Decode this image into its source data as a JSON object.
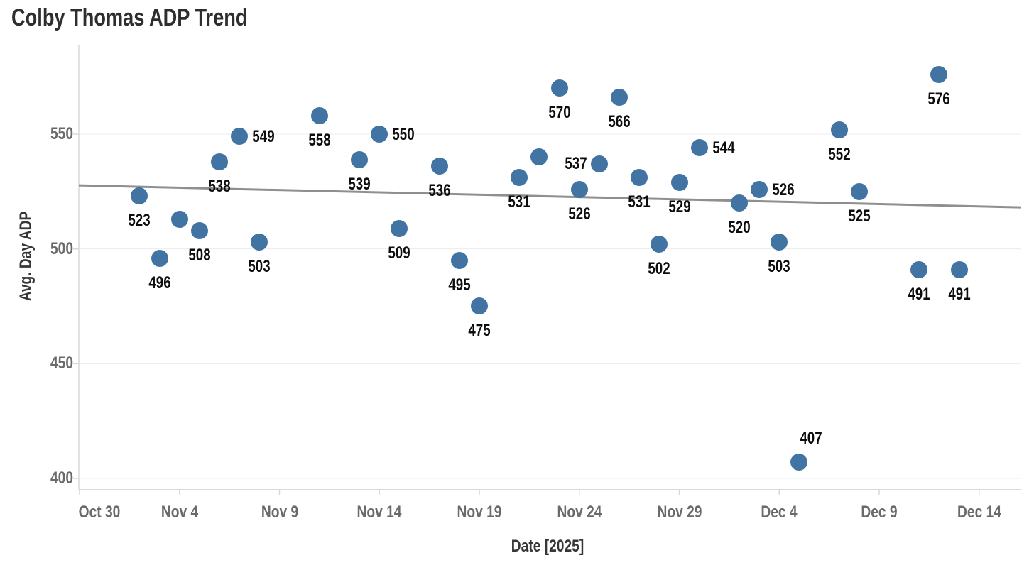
{
  "chart": {
    "title": "Colby Thomas ADP Trend",
    "xlabel": "Date [2025]",
    "ylabel": "Avg. Day ADP"
  },
  "chart_data": {
    "type": "scatter",
    "title": "Colby Thomas ADP Trend",
    "xlabel": "Date [2025]",
    "ylabel": "Avg. Day ADP",
    "legend": "none",
    "grid": "horizontal-only",
    "point_color": "#4173a3",
    "trend_color": "#8f8f8f",
    "grid_color": "#ececec",
    "axis_color": "#d9d9d9",
    "tick_label_color": "#6a6a6a",
    "x_ticks": [
      {
        "label": "Oct 30",
        "day": 0
      },
      {
        "label": "Nov 4",
        "day": 5
      },
      {
        "label": "Nov 9",
        "day": 10
      },
      {
        "label": "Nov 14",
        "day": 15
      },
      {
        "label": "Nov 19",
        "day": 20
      },
      {
        "label": "Nov 24",
        "day": 25
      },
      {
        "label": "Nov 29",
        "day": 30
      },
      {
        "label": "Dec 4",
        "day": 35
      },
      {
        "label": "Dec 9",
        "day": 40
      },
      {
        "label": "Dec 14",
        "day": 45
      }
    ],
    "y_ticks": [
      400,
      450,
      500,
      550
    ],
    "y_range_visible": [
      395,
      589
    ],
    "points": [
      {
        "date": "Nov 2",
        "day": 3,
        "value": 523,
        "label": "523",
        "label_position": "below"
      },
      {
        "date": "Nov 3",
        "day": 4,
        "value": 496,
        "label": "496",
        "label_position": "below"
      },
      {
        "date": "Nov 4",
        "day": 5,
        "value": 513,
        "label": "",
        "label_position": null
      },
      {
        "date": "Nov 5",
        "day": 6,
        "value": 508,
        "label": "508",
        "label_position": "below"
      },
      {
        "date": "Nov 6",
        "day": 7,
        "value": 538,
        "label": "538",
        "label_position": "below"
      },
      {
        "date": "Nov 7",
        "day": 8,
        "value": 549,
        "label": "549",
        "label_position": "right"
      },
      {
        "date": "Nov 8",
        "day": 9,
        "value": 503,
        "label": "503",
        "label_position": "below"
      },
      {
        "date": "Nov 11",
        "day": 12,
        "value": 558,
        "label": "558",
        "label_position": "below"
      },
      {
        "date": "Nov 13",
        "day": 14,
        "value": 539,
        "label": "539",
        "label_position": "below"
      },
      {
        "date": "Nov 14",
        "day": 15,
        "value": 550,
        "label": "550",
        "label_position": "right"
      },
      {
        "date": "Nov 15",
        "day": 16,
        "value": 509,
        "label": "509",
        "label_position": "below"
      },
      {
        "date": "Nov 17",
        "day": 18,
        "value": 536,
        "label": "536",
        "label_position": "below"
      },
      {
        "date": "Nov 18",
        "day": 19,
        "value": 495,
        "label": "495",
        "label_position": "below"
      },
      {
        "date": "Nov 19",
        "day": 20,
        "value": 475,
        "label": "475",
        "label_position": "below"
      },
      {
        "date": "Nov 21",
        "day": 22,
        "value": 531,
        "label": "531",
        "label_position": "below"
      },
      {
        "date": "Nov 22",
        "day": 23,
        "value": 540,
        "label": "",
        "label_position": null
      },
      {
        "date": "Nov 23",
        "day": 24,
        "value": 570,
        "label": "570",
        "label_position": "below"
      },
      {
        "date": "Nov 24",
        "day": 25,
        "value": 526,
        "label": "526",
        "label_position": "below"
      },
      {
        "date": "Nov 25",
        "day": 26,
        "value": 537,
        "label": "537",
        "label_position": "left"
      },
      {
        "date": "Nov 26",
        "day": 27,
        "value": 566,
        "label": "566",
        "label_position": "below"
      },
      {
        "date": "Nov 27",
        "day": 28,
        "value": 531,
        "label": "531",
        "label_position": "below"
      },
      {
        "date": "Nov 28",
        "day": 29,
        "value": 502,
        "label": "502",
        "label_position": "below"
      },
      {
        "date": "Nov 29",
        "day": 30,
        "value": 529,
        "label": "529",
        "label_position": "below"
      },
      {
        "date": "Nov 30",
        "day": 31,
        "value": 544,
        "label": "544",
        "label_position": "right"
      },
      {
        "date": "Dec 2",
        "day": 33,
        "value": 520,
        "label": "520",
        "label_position": "below"
      },
      {
        "date": "Dec 3",
        "day": 34,
        "value": 526,
        "label": "526",
        "label_position": "right"
      },
      {
        "date": "Dec 4",
        "day": 35,
        "value": 503,
        "label": "503",
        "label_position": "below"
      },
      {
        "date": "Dec 5",
        "day": 36,
        "value": 407,
        "label": "407",
        "label_position": "above-right"
      },
      {
        "date": "Dec 7",
        "day": 38,
        "value": 552,
        "label": "552",
        "label_position": "below"
      },
      {
        "date": "Dec 8",
        "day": 39,
        "value": 525,
        "label": "525",
        "label_position": "below"
      },
      {
        "date": "Dec 11",
        "day": 42,
        "value": 491,
        "label": "491",
        "label_position": "below"
      },
      {
        "date": "Dec 12",
        "day": 43,
        "value": 576,
        "label": "576",
        "label_position": "below"
      },
      {
        "date": "Dec 13",
        "day": 44,
        "value": 491,
        "label": "491",
        "label_position": "below"
      }
    ],
    "trend_line": {
      "start_date": "Oct 30",
      "start_value": 527.7,
      "end_date": "Dec 16",
      "end_value": 518.1
    }
  }
}
